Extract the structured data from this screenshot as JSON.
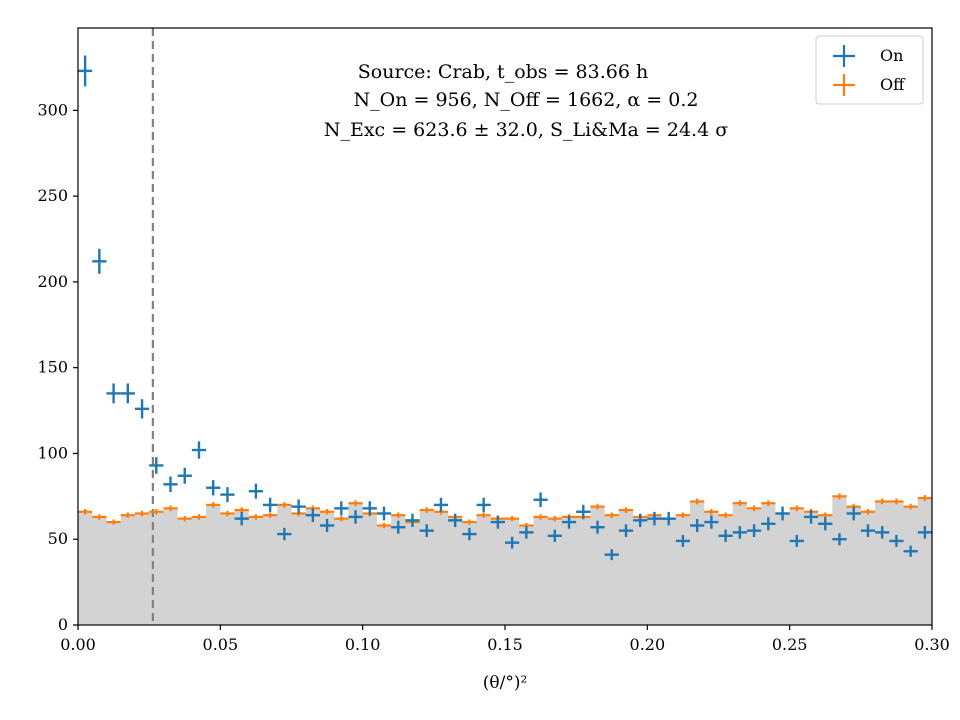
{
  "chart_data": {
    "type": "scatter",
    "title": "",
    "xlabel": "(θ/°)²",
    "ylabel": "",
    "xlim": [
      0.0,
      0.3
    ],
    "ylim": [
      0,
      348
    ],
    "bin_width": 0.005,
    "x_ticks": [
      0.0,
      0.05,
      0.1,
      0.15,
      0.2,
      0.25,
      0.3
    ],
    "x_tick_labels": [
      "0.00",
      "0.05",
      "0.10",
      "0.15",
      "0.20",
      "0.25",
      "0.30"
    ],
    "y_ticks": [
      0,
      50,
      100,
      150,
      200,
      250,
      300
    ],
    "y_tick_labels": [
      "0",
      "50",
      "100",
      "150",
      "200",
      "250",
      "300"
    ],
    "theta2_cut": 0.0263,
    "annotation": [
      "Source: Crab, t_obs = 83.66 h",
      "N_On = 956, N_Off = 1662, α = 0.2",
      "N_Exc = 623.6 ± 32.0, S_Li&Ma = 24.4 σ"
    ],
    "legend": {
      "placement": "top-right",
      "entries": [
        "On",
        "Off"
      ]
    },
    "colors": {
      "on": "#1f77b4",
      "off": "#ff7f0e",
      "fill": "#d3d3d3",
      "cut_line": "#808080"
    },
    "series": [
      {
        "name": "On",
        "x": [
          0.0025,
          0.0075,
          0.0125,
          0.0175,
          0.0225,
          0.0275,
          0.0325,
          0.0375,
          0.0425,
          0.0475,
          0.0525,
          0.0575,
          0.0625,
          0.0675,
          0.0725,
          0.0775,
          0.0825,
          0.0875,
          0.0925,
          0.0975,
          0.1025,
          0.1075,
          0.1125,
          0.1175,
          0.1225,
          0.1275,
          0.1325,
          0.1375,
          0.1425,
          0.1475,
          0.1525,
          0.1575,
          0.1625,
          0.1675,
          0.1725,
          0.1775,
          0.1825,
          0.1875,
          0.1925,
          0.1975,
          0.2025,
          0.2075,
          0.2125,
          0.2175,
          0.2225,
          0.2275,
          0.2325,
          0.2375,
          0.2425,
          0.2475,
          0.2525,
          0.2575,
          0.2625,
          0.2675,
          0.2725,
          0.2775,
          0.2825,
          0.2875,
          0.2925,
          0.2975
        ],
        "values": [
          323,
          212,
          135,
          135,
          126,
          93,
          82,
          87,
          102,
          80,
          76,
          62,
          78,
          70,
          53,
          69,
          64,
          58,
          68,
          63,
          68,
          65,
          57,
          61,
          55,
          70,
          61,
          53,
          70,
          60,
          48,
          54,
          73,
          52,
          60,
          66,
          57,
          41,
          55,
          61,
          62,
          62,
          49,
          58,
          60,
          52,
          54,
          55,
          59,
          65,
          49,
          63,
          59,
          50,
          65,
          55,
          54,
          49,
          43,
          54
        ]
      },
      {
        "name": "Off",
        "x": [
          0.0025,
          0.0075,
          0.0125,
          0.0175,
          0.0225,
          0.0275,
          0.0325,
          0.0375,
          0.0425,
          0.0475,
          0.0525,
          0.0575,
          0.0625,
          0.0675,
          0.0725,
          0.0775,
          0.0825,
          0.0875,
          0.0925,
          0.0975,
          0.1025,
          0.1075,
          0.1125,
          0.1175,
          0.1225,
          0.1275,
          0.1325,
          0.1375,
          0.1425,
          0.1475,
          0.1525,
          0.1575,
          0.1625,
          0.1675,
          0.1725,
          0.1775,
          0.1825,
          0.1875,
          0.1925,
          0.1975,
          0.2025,
          0.2075,
          0.2125,
          0.2175,
          0.2225,
          0.2275,
          0.2325,
          0.2375,
          0.2425,
          0.2475,
          0.2525,
          0.2575,
          0.2625,
          0.2675,
          0.2725,
          0.2775,
          0.2825,
          0.2875,
          0.2925,
          0.2975
        ],
        "values": [
          66,
          63,
          60,
          64,
          65,
          66,
          68,
          62,
          63,
          70,
          65,
          67,
          63,
          64,
          70,
          65,
          68,
          66,
          62,
          71,
          65,
          58,
          64,
          60,
          67,
          66,
          63,
          60,
          64,
          62,
          62,
          58,
          63,
          62,
          63,
          63,
          69,
          64,
          67,
          63,
          64,
          62,
          64,
          72,
          66,
          64,
          71,
          68,
          71,
          65,
          68,
          66,
          64,
          75,
          69,
          66,
          72,
          72,
          69,
          74
        ]
      }
    ]
  }
}
